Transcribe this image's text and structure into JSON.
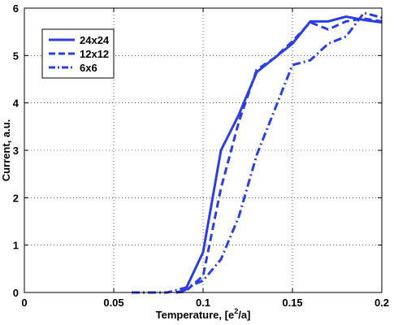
{
  "chart_data": {
    "type": "line",
    "xlabel": "Temperature, [e",
    "xlabel_sup": "2",
    "xlabel_tail": "/a]",
    "ylabel": "Current, a.u.",
    "xlim": [
      0,
      0.2
    ],
    "ylim": [
      0,
      6
    ],
    "xticks": [
      "0",
      "0.05",
      "0.1",
      "0.15",
      "0.2"
    ],
    "yticks": [
      "0",
      "1",
      "2",
      "3",
      "4",
      "5",
      "6"
    ],
    "grid": true,
    "legend_position": "top-left",
    "color": "#2b3ee6",
    "series": [
      {
        "name": "24x24",
        "style": "solid",
        "x": [
          0.085,
          0.09,
          0.1,
          0.11,
          0.12,
          0.13,
          0.14,
          0.15,
          0.16,
          0.17,
          0.18,
          0.19,
          0.2
        ],
        "y": [
          0,
          0.05,
          0.85,
          3.0,
          3.75,
          4.65,
          4.95,
          5.25,
          5.72,
          5.72,
          5.82,
          5.75,
          5.7
        ]
      },
      {
        "name": "12x12",
        "style": "dashed",
        "x": [
          0.085,
          0.09,
          0.1,
          0.11,
          0.12,
          0.13,
          0.14,
          0.15,
          0.16,
          0.17,
          0.18,
          0.19,
          0.2
        ],
        "y": [
          0,
          0.02,
          0.35,
          2.2,
          3.6,
          4.7,
          4.95,
          5.3,
          5.7,
          5.55,
          5.72,
          5.78,
          5.72
        ]
      },
      {
        "name": "6x6",
        "style": "dashdot",
        "x": [
          0.06,
          0.07,
          0.08,
          0.09,
          0.1,
          0.11,
          0.12,
          0.13,
          0.14,
          0.15,
          0.16,
          0.17,
          0.18,
          0.19,
          0.2
        ],
        "y": [
          0,
          0,
          0,
          0.1,
          0.25,
          0.7,
          1.6,
          2.9,
          3.85,
          4.8,
          4.9,
          5.25,
          5.4,
          5.9,
          5.8
        ]
      }
    ]
  }
}
